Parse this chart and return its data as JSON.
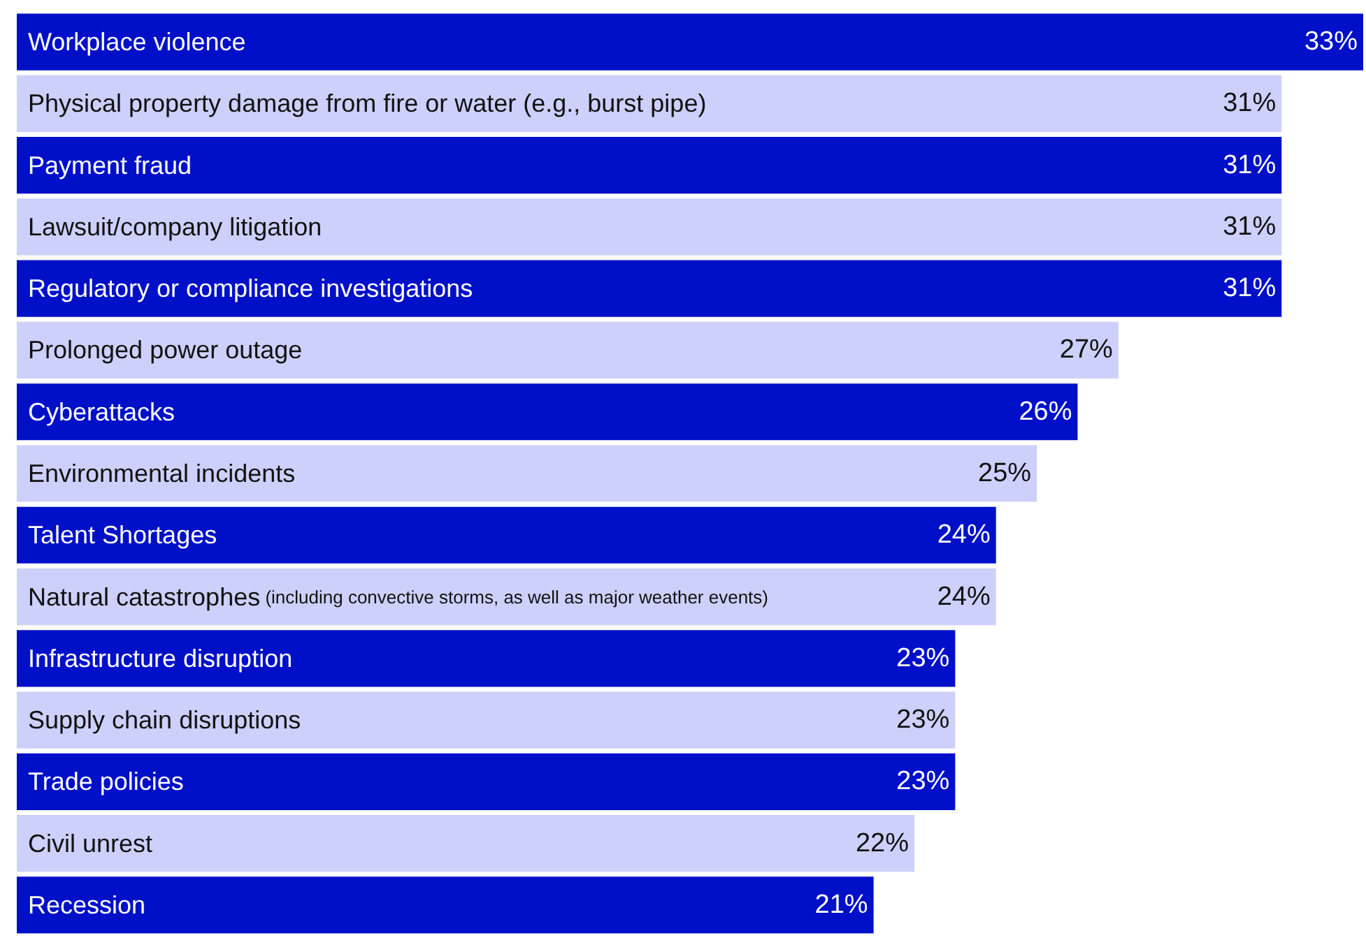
{
  "chart_data": {
    "type": "bar",
    "orientation": "horizontal",
    "categories": [
      "Workplace violence",
      "Physical property damage from fire or water (e.g., burst pipe)",
      "Payment fraud",
      "Lawsuit/company litigation",
      "Regulatory or compliance investigations",
      "Prolonged power outage",
      "Cyberattacks",
      "Environmental incidents",
      "Talent Shortages",
      "Natural catastrophes (including convective storms, as well as major weather events)",
      "Infrastructure disruption",
      "Supply chain disruptions",
      "Trade policies",
      "Civil unrest",
      "Recession"
    ],
    "values": [
      33,
      31,
      31,
      31,
      31,
      27,
      26,
      25,
      24,
      24,
      23,
      23,
      23,
      22,
      21
    ],
    "value_labels": [
      "33%",
      "31%",
      "31%",
      "31%",
      "31%",
      "27%",
      "26%",
      "25%",
      "24%",
      "24%",
      "23%",
      "23%",
      "23%",
      "22%",
      "21%"
    ],
    "colors": [
      "#0010c8",
      "#ccd0fa",
      "#0010c8",
      "#ccd0fa",
      "#0010c8",
      "#ccd0fa",
      "#0010c8",
      "#ccd0fa",
      "#0010c8",
      "#ccd0fa",
      "#0010c8",
      "#ccd0fa",
      "#0010c8",
      "#ccd0fa",
      "#0010c8"
    ],
    "xlim": [
      0,
      33
    ]
  }
}
